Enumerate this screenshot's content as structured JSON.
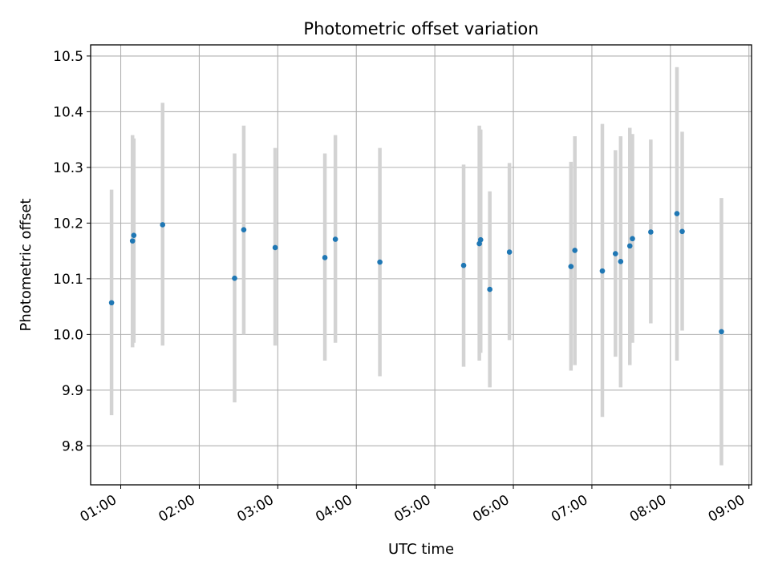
{
  "chart_data": {
    "type": "scatter",
    "title": "Photometric offset variation",
    "xlabel": "UTC time",
    "ylabel": "Photometric offset",
    "grid": true,
    "x_ticks": [
      "01:00",
      "02:00",
      "03:00",
      "04:00",
      "05:00",
      "06:00",
      "07:00",
      "08:00",
      "09:00"
    ],
    "y_ticks": [
      "9.8",
      "9.9",
      "10.0",
      "10.1",
      "10.2",
      "10.3",
      "10.4",
      "10.5"
    ],
    "xlim": [
      "00:37",
      "09:02"
    ],
    "ylim": [
      9.73,
      10.52
    ],
    "marker_color": "#1f77b4",
    "errorbar_color": "#d3d3d3",
    "points": [
      {
        "x": "00:53",
        "y": 10.057,
        "lo": 9.855,
        "hi": 10.26
      },
      {
        "x": "01:09",
        "y": 10.168,
        "lo": 9.977,
        "hi": 10.358
      },
      {
        "x": "01:10",
        "y": 10.178,
        "lo": 9.985,
        "hi": 10.352
      },
      {
        "x": "01:32",
        "y": 10.197,
        "lo": 9.98,
        "hi": 10.416
      },
      {
        "x": "02:27",
        "y": 10.101,
        "lo": 9.878,
        "hi": 10.325
      },
      {
        "x": "02:34",
        "y": 10.188,
        "lo": 10.0,
        "hi": 10.375
      },
      {
        "x": "02:58",
        "y": 10.156,
        "lo": 9.98,
        "hi": 10.335
      },
      {
        "x": "03:36",
        "y": 10.138,
        "lo": 9.953,
        "hi": 10.325
      },
      {
        "x": "03:44",
        "y": 10.171,
        "lo": 9.985,
        "hi": 10.358
      },
      {
        "x": "04:18",
        "y": 10.13,
        "lo": 9.925,
        "hi": 10.335
      },
      {
        "x": "05:22",
        "y": 10.124,
        "lo": 9.942,
        "hi": 10.305
      },
      {
        "x": "05:34",
        "y": 10.163,
        "lo": 9.953,
        "hi": 10.375
      },
      {
        "x": "05:35",
        "y": 10.17,
        "lo": 9.967,
        "hi": 10.368
      },
      {
        "x": "05:42",
        "y": 10.081,
        "lo": 9.905,
        "hi": 10.257
      },
      {
        "x": "05:57",
        "y": 10.148,
        "lo": 9.99,
        "hi": 10.308
      },
      {
        "x": "06:44",
        "y": 10.122,
        "lo": 9.935,
        "hi": 10.31
      },
      {
        "x": "06:47",
        "y": 10.151,
        "lo": 9.945,
        "hi": 10.356
      },
      {
        "x": "07:08",
        "y": 10.114,
        "lo": 9.852,
        "hi": 10.378
      },
      {
        "x": "07:18",
        "y": 10.145,
        "lo": 9.96,
        "hi": 10.331
      },
      {
        "x": "07:22",
        "y": 10.131,
        "lo": 9.905,
        "hi": 10.356
      },
      {
        "x": "07:29",
        "y": 10.159,
        "lo": 9.945,
        "hi": 10.371
      },
      {
        "x": "07:31",
        "y": 10.172,
        "lo": 9.985,
        "hi": 10.36
      },
      {
        "x": "07:45",
        "y": 10.184,
        "lo": 10.02,
        "hi": 10.35
      },
      {
        "x": "08:05",
        "y": 10.217,
        "lo": 9.953,
        "hi": 10.48
      },
      {
        "x": "08:09",
        "y": 10.185,
        "lo": 10.007,
        "hi": 10.364
      },
      {
        "x": "08:39",
        "y": 10.005,
        "lo": 9.765,
        "hi": 10.245
      }
    ]
  }
}
